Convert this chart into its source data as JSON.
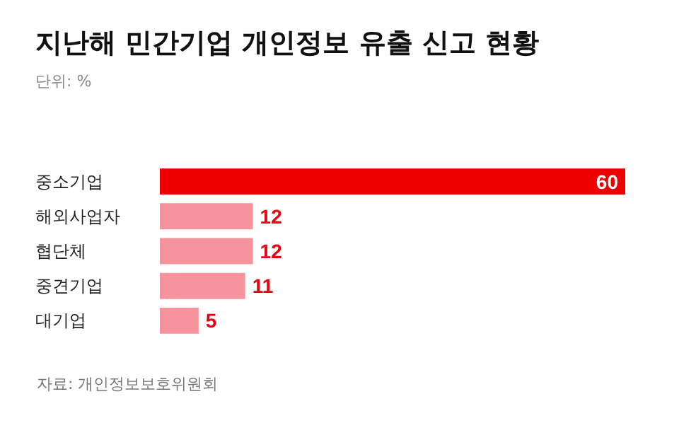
{
  "chart_data": {
    "type": "bar",
    "orientation": "horizontal",
    "title": "지난해 민간기업 개인정보 유출 신고 현황",
    "subtitle": "단위: %",
    "categories": [
      "중소기업",
      "해외사업자",
      "협단체",
      "중견기업",
      "대기업"
    ],
    "values": [
      60,
      12,
      12,
      11,
      5
    ],
    "colors": [
      "#ee0000",
      "#f7939c",
      "#f7939c",
      "#f7939c",
      "#f7939c"
    ],
    "data_labels": true,
    "grid": false,
    "annotations": [
      "자료: 개인정보보호위원회"
    ]
  }
}
